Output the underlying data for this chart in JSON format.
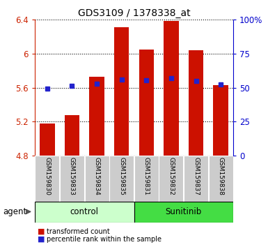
{
  "title": "GDS3109 / 1378338_at",
  "samples": [
    "GSM159830",
    "GSM159833",
    "GSM159834",
    "GSM159835",
    "GSM159831",
    "GSM159832",
    "GSM159837",
    "GSM159838"
  ],
  "red_values": [
    5.18,
    5.28,
    5.73,
    6.31,
    6.05,
    6.39,
    6.04,
    5.63
  ],
  "blue_values": [
    5.59,
    5.62,
    5.65,
    5.7,
    5.69,
    5.71,
    5.68,
    5.64
  ],
  "ymin": 4.8,
  "ymax": 6.4,
  "yticks_left": [
    4.8,
    5.2,
    5.6,
    6.0,
    6.4
  ],
  "ytick_labels_left": [
    "4.8",
    "5.2",
    "5.6",
    "6",
    "6.4"
  ],
  "yticks_right_vals": [
    0,
    25,
    50,
    75,
    100
  ],
  "ytick_labels_right": [
    "0",
    "25",
    "50",
    "75",
    "100%"
  ],
  "groups": [
    {
      "label": "control",
      "indices": [
        0,
        1,
        2,
        3
      ],
      "color": "#ccffcc",
      "border": "#000000"
    },
    {
      "label": "Sunitinib",
      "indices": [
        4,
        5,
        6,
        7
      ],
      "color": "#44dd44",
      "border": "#000000"
    }
  ],
  "bar_color": "#cc1100",
  "blue_color": "#2222cc",
  "bar_width": 0.6,
  "agent_label": "agent",
  "legend_items": [
    "transformed count",
    "percentile rank within the sample"
  ],
  "tick_label_color_left": "#cc2200",
  "tick_label_color_right": "#0000cc",
  "grid_color": "#333333",
  "label_bg_color": "#cccccc",
  "label_border_color": "#999999"
}
